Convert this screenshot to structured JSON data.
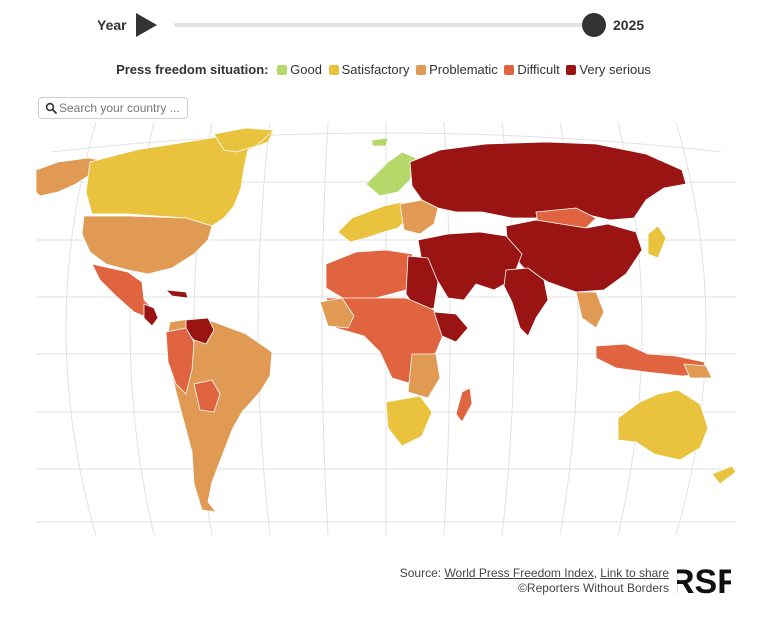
{
  "year_control": {
    "label": "Year",
    "value": "2025",
    "slider_position": 1.0
  },
  "legend": {
    "title": "Press freedom situation:",
    "items": [
      {
        "label": "Good",
        "color": "#b6d86b"
      },
      {
        "label": "Satisfactory",
        "color": "#e9c33e"
      },
      {
        "label": "Problematic",
        "color": "#e19a54"
      },
      {
        "label": "Difficult",
        "color": "#e0643f"
      },
      {
        "label": "Very serious",
        "color": "#9a1414"
      }
    ]
  },
  "search": {
    "placeholder": "Search your country ..."
  },
  "footer": {
    "source_prefix": "Source: ",
    "source_link": "World Press Freedom Index",
    "separator": ", ",
    "share_link": "Link to share",
    "copyright": "©Reporters Without Borders"
  },
  "logo": {
    "text": "RSF"
  }
}
